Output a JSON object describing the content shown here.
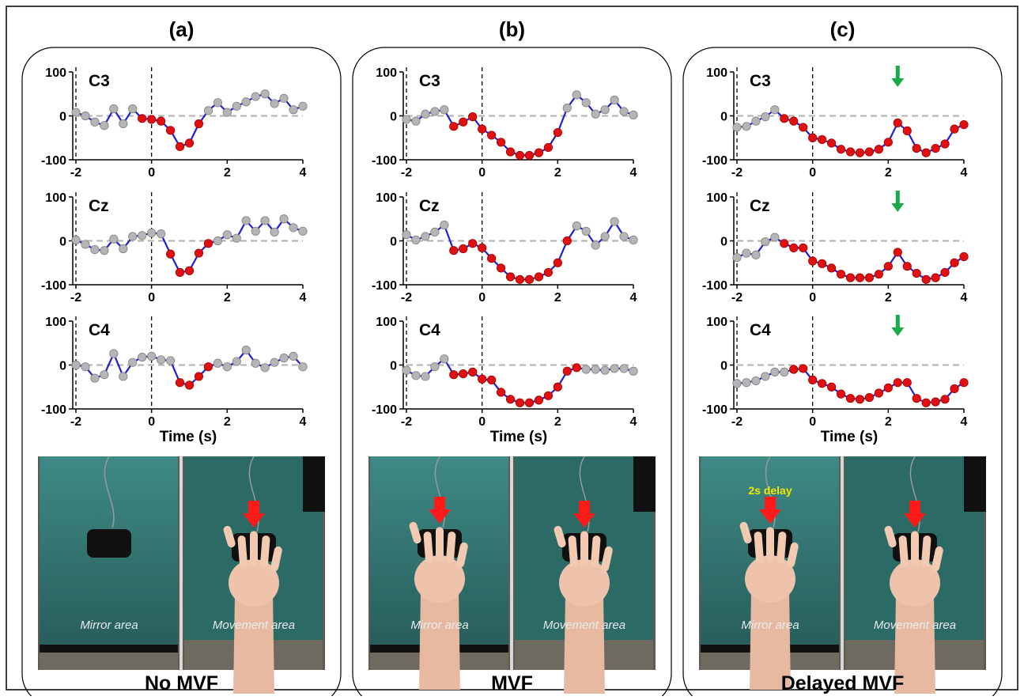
{
  "figure": {
    "panel_letters": [
      "(a)",
      "(b)",
      "(c)"
    ],
    "captions": [
      "No MVF",
      "MVF",
      "Delayed MVF"
    ],
    "photo_labels": {
      "mirror": "Mirror area",
      "movement": "Movement area",
      "delay": "2s delay"
    },
    "colors": {
      "line": "#1f1fd6",
      "significant_point": "#e01010",
      "nonsignificant_point": "#b5b5b5",
      "zero_line": "#b0b0b0",
      "annotation_arrow": "#1aaa4a",
      "photo_arrow": "#ff1a1a",
      "photo_background": "#2f6c68"
    }
  },
  "chart_data": [
    {
      "panel": "(a)",
      "type": "line",
      "xlabel": "Time (s)",
      "xlim": [
        -2,
        4
      ],
      "ylim": [
        -100,
        100
      ],
      "xticks": [
        "-2",
        "0",
        "2",
        "4"
      ],
      "yticks": [
        "100",
        "0",
        "-100"
      ],
      "vertical_dashed_lines_at": [
        -2,
        0
      ],
      "annotation_arrow_at": null,
      "series": [
        {
          "name": "C3",
          "x": [
            -2.0,
            -1.75,
            -1.5,
            -1.25,
            -1.0,
            -0.75,
            -0.5,
            -0.25,
            0.0,
            0.25,
            0.5,
            0.75,
            1.0,
            1.25,
            1.5,
            1.75,
            2.0,
            2.25,
            2.5,
            2.75,
            3.0,
            3.25,
            3.5,
            3.75,
            4.0
          ],
          "values": [
            8,
            0,
            -14,
            -22,
            16,
            -18,
            16,
            -6,
            -8,
            -12,
            -33,
            -70,
            -62,
            -18,
            12,
            30,
            8,
            22,
            32,
            44,
            50,
            28,
            40,
            14,
            22
          ],
          "significant": [
            0,
            0,
            0,
            0,
            0,
            0,
            0,
            1,
            1,
            1,
            1,
            1,
            1,
            1,
            0,
            0,
            0,
            0,
            0,
            0,
            0,
            0,
            0,
            0,
            0
          ]
        },
        {
          "name": "Cz",
          "x": [
            -2.0,
            -1.75,
            -1.5,
            -1.25,
            -1.0,
            -0.75,
            -0.5,
            -0.25,
            0.0,
            0.25,
            0.5,
            0.75,
            1.0,
            1.25,
            1.5,
            1.75,
            2.0,
            2.25,
            2.5,
            2.75,
            3.0,
            3.25,
            3.5,
            3.75,
            4.0
          ],
          "values": [
            2,
            -8,
            -20,
            -22,
            4,
            -18,
            10,
            12,
            18,
            16,
            -30,
            -72,
            -68,
            -28,
            -6,
            0,
            14,
            6,
            46,
            22,
            46,
            20,
            50,
            30,
            22
          ],
          "significant": [
            0,
            0,
            0,
            0,
            0,
            0,
            0,
            0,
            0,
            0,
            1,
            1,
            1,
            1,
            1,
            0,
            0,
            0,
            0,
            0,
            0,
            0,
            0,
            0,
            0
          ]
        },
        {
          "name": "C4",
          "x": [
            -2.0,
            -1.75,
            -1.5,
            -1.25,
            -1.0,
            -0.75,
            -0.5,
            -0.25,
            0.0,
            0.25,
            0.5,
            0.75,
            1.0,
            1.25,
            1.5,
            1.75,
            2.0,
            2.25,
            2.5,
            2.75,
            3.0,
            3.25,
            3.5,
            3.75,
            4.0
          ],
          "values": [
            0,
            -4,
            -30,
            -22,
            26,
            -26,
            6,
            18,
            20,
            12,
            10,
            -40,
            -46,
            -26,
            -4,
            4,
            -4,
            8,
            34,
            4,
            -6,
            6,
            16,
            20,
            -4
          ],
          "significant": [
            0,
            0,
            0,
            0,
            0,
            0,
            0,
            0,
            0,
            0,
            0,
            1,
            1,
            1,
            1,
            0,
            0,
            0,
            0,
            0,
            0,
            0,
            0,
            0,
            0
          ]
        }
      ]
    },
    {
      "panel": "(b)",
      "type": "line",
      "xlabel": "Time (s)",
      "xlim": [
        -2,
        4
      ],
      "ylim": [
        -100,
        100
      ],
      "xticks": [
        "-2",
        "0",
        "2",
        "4"
      ],
      "yticks": [
        "100",
        "0",
        "-100"
      ],
      "vertical_dashed_lines_at": [
        -2,
        0
      ],
      "annotation_arrow_at": null,
      "series": [
        {
          "name": "C3",
          "x": [
            -2.0,
            -1.75,
            -1.5,
            -1.25,
            -1.0,
            -0.75,
            -0.5,
            -0.25,
            0.0,
            0.25,
            0.5,
            0.75,
            1.0,
            1.25,
            1.5,
            1.75,
            2.0,
            2.25,
            2.5,
            2.75,
            3.0,
            3.25,
            3.5,
            3.75,
            4.0
          ],
          "values": [
            -8,
            -12,
            4,
            10,
            14,
            -24,
            -14,
            -2,
            -30,
            -44,
            -60,
            -82,
            -90,
            -90,
            -84,
            -72,
            -38,
            18,
            48,
            30,
            4,
            14,
            36,
            10,
            2
          ],
          "significant": [
            0,
            0,
            0,
            0,
            0,
            1,
            1,
            1,
            1,
            1,
            1,
            1,
            1,
            1,
            1,
            1,
            1,
            0,
            0,
            0,
            0,
            0,
            0,
            0,
            0
          ]
        },
        {
          "name": "Cz",
          "x": [
            -2.0,
            -1.75,
            -1.5,
            -1.25,
            -1.0,
            -0.75,
            -0.5,
            -0.25,
            0.0,
            0.25,
            0.5,
            0.75,
            1.0,
            1.25,
            1.5,
            1.75,
            2.0,
            2.25,
            2.5,
            2.75,
            3.0,
            3.25,
            3.5,
            3.75,
            4.0
          ],
          "values": [
            14,
            2,
            10,
            20,
            36,
            -22,
            -18,
            -6,
            -16,
            -40,
            -62,
            -82,
            -88,
            -88,
            -82,
            -72,
            -50,
            0,
            34,
            22,
            -10,
            10,
            44,
            10,
            2
          ],
          "significant": [
            0,
            0,
            0,
            0,
            0,
            1,
            1,
            1,
            1,
            1,
            1,
            1,
            1,
            1,
            1,
            1,
            1,
            1,
            0,
            0,
            0,
            0,
            0,
            0,
            0
          ]
        },
        {
          "name": "C4",
          "x": [
            -2.0,
            -1.75,
            -1.5,
            -1.25,
            -1.0,
            -0.75,
            -0.5,
            -0.25,
            0.0,
            0.25,
            0.5,
            0.75,
            1.0,
            1.25,
            1.5,
            1.75,
            2.0,
            2.25,
            2.5,
            2.75,
            3.0,
            3.25,
            3.5,
            3.75,
            4.0
          ],
          "values": [
            -12,
            -24,
            -26,
            -4,
            14,
            -22,
            -20,
            -16,
            -32,
            -34,
            -62,
            -78,
            -86,
            -86,
            -80,
            -70,
            -50,
            -14,
            -6,
            -10,
            -10,
            -12,
            -8,
            -8,
            -14
          ],
          "significant": [
            0,
            0,
            0,
            0,
            0,
            1,
            1,
            1,
            1,
            1,
            1,
            1,
            1,
            1,
            1,
            1,
            1,
            1,
            1,
            0,
            0,
            0,
            0,
            0,
            0
          ]
        }
      ]
    },
    {
      "panel": "(c)",
      "type": "line",
      "xlabel": "Time (s)",
      "xlim": [
        -2,
        4
      ],
      "ylim": [
        -100,
        100
      ],
      "xticks": [
        "-2",
        "0",
        "2",
        "4"
      ],
      "yticks": [
        "100",
        "0",
        "-100"
      ],
      "vertical_dashed_lines_at": [
        -2,
        0
      ],
      "annotation_arrow_at": 2.25,
      "series": [
        {
          "name": "C3",
          "x": [
            -2.0,
            -1.75,
            -1.5,
            -1.25,
            -1.0,
            -0.75,
            -0.5,
            -0.25,
            0.0,
            0.25,
            0.5,
            0.75,
            1.0,
            1.25,
            1.5,
            1.75,
            2.0,
            2.25,
            2.5,
            2.75,
            3.0,
            3.25,
            3.5,
            3.75,
            4.0
          ],
          "values": [
            -26,
            -24,
            -12,
            -2,
            14,
            -6,
            -12,
            -26,
            -50,
            -54,
            -62,
            -76,
            -82,
            -84,
            -82,
            -76,
            -60,
            -16,
            -34,
            -74,
            -84,
            -74,
            -64,
            -30,
            -20
          ],
          "significant": [
            0,
            0,
            0,
            0,
            0,
            1,
            1,
            1,
            1,
            1,
            1,
            1,
            1,
            1,
            1,
            1,
            1,
            1,
            1,
            1,
            1,
            1,
            1,
            1,
            1
          ]
        },
        {
          "name": "Cz",
          "x": [
            -2.0,
            -1.75,
            -1.5,
            -1.25,
            -1.0,
            -0.75,
            -0.5,
            -0.25,
            0.0,
            0.25,
            0.5,
            0.75,
            1.0,
            1.25,
            1.5,
            1.75,
            2.0,
            2.25,
            2.5,
            2.75,
            3.0,
            3.25,
            3.5,
            3.75,
            4.0
          ],
          "values": [
            -38,
            -28,
            -32,
            -2,
            8,
            -6,
            -16,
            -16,
            -46,
            -52,
            -62,
            -76,
            -84,
            -84,
            -84,
            -76,
            -58,
            -26,
            -58,
            -74,
            -88,
            -84,
            -72,
            -50,
            -36
          ],
          "significant": [
            0,
            0,
            0,
            0,
            0,
            1,
            1,
            1,
            1,
            1,
            1,
            1,
            1,
            1,
            1,
            1,
            1,
            1,
            1,
            1,
            1,
            1,
            1,
            1,
            1
          ]
        },
        {
          "name": "C4",
          "x": [
            -2.0,
            -1.75,
            -1.5,
            -1.25,
            -1.0,
            -0.75,
            -0.5,
            -0.25,
            0.0,
            0.25,
            0.5,
            0.75,
            1.0,
            1.25,
            1.5,
            1.75,
            2.0,
            2.25,
            2.5,
            2.75,
            3.0,
            3.25,
            3.5,
            3.75,
            4.0
          ],
          "values": [
            -42,
            -40,
            -36,
            -26,
            -16,
            -16,
            -10,
            -8,
            -34,
            -42,
            -50,
            -66,
            -76,
            -78,
            -74,
            -64,
            -52,
            -40,
            -40,
            -76,
            -86,
            -84,
            -78,
            -54,
            -40
          ],
          "significant": [
            0,
            0,
            0,
            0,
            0,
            0,
            1,
            1,
            1,
            1,
            1,
            1,
            1,
            1,
            1,
            1,
            1,
            1,
            1,
            1,
            1,
            1,
            1,
            1,
            1
          ]
        }
      ]
    }
  ]
}
